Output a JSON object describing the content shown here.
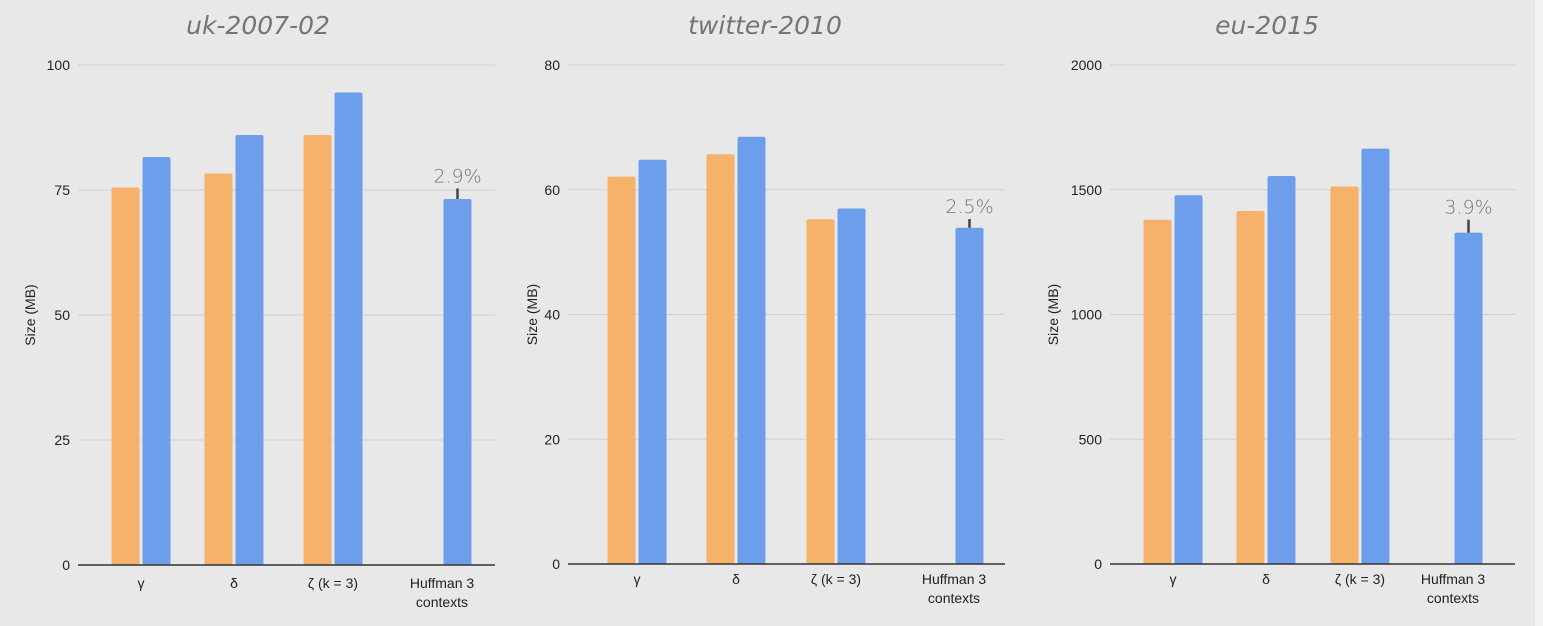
{
  "colors": {
    "background": "#e8e8e8",
    "gridline": "#cfcfcf",
    "axis": "#333333",
    "series_a": "#f6b26b",
    "series_b": "#6d9eeb",
    "title_text": "#757575",
    "annotation_text": "#757575",
    "error_bar": "#444444"
  },
  "chart_data": [
    {
      "type": "bar",
      "title": "uk-2007-02",
      "ylabel": "Size (MB)",
      "ylim": [
        0,
        100
      ],
      "yticks": [
        0,
        25,
        50,
        75,
        100
      ],
      "grid": true,
      "categories": [
        [
          "γ"
        ],
        [
          "δ"
        ],
        [
          "ζ (k = 3)"
        ],
        [
          "Huffman 3",
          "contexts"
        ]
      ],
      "series": [
        {
          "values": [
            75.5,
            78.3,
            86.0,
            null
          ]
        },
        {
          "values": [
            81.6,
            86.0,
            94.5,
            73.2
          ]
        }
      ],
      "annotation": {
        "category_index": 3,
        "text": "2.9%",
        "error_bar_to": 75.3
      }
    },
    {
      "type": "bar",
      "title": "twitter-2010",
      "ylabel": "Size (MB)",
      "ylim": [
        0,
        80
      ],
      "yticks": [
        0,
        20,
        40,
        60,
        80
      ],
      "grid": true,
      "categories": [
        [
          "γ"
        ],
        [
          "δ"
        ],
        [
          "ζ (k = 3)"
        ],
        [
          "Huffman 3",
          "contexts"
        ]
      ],
      "series": [
        {
          "values": [
            62.1,
            65.7,
            55.3,
            null
          ]
        },
        {
          "values": [
            64.8,
            68.5,
            57.0,
            53.9
          ]
        }
      ],
      "annotation": {
        "category_index": 3,
        "text": "2.5%",
        "error_bar_to": 55.3
      }
    },
    {
      "type": "bar",
      "title": "eu-2015",
      "ylabel": "Size (MB)",
      "ylim": [
        0,
        2000
      ],
      "yticks": [
        0,
        500,
        1000,
        1500,
        2000
      ],
      "grid": true,
      "categories": [
        [
          "γ"
        ],
        [
          "δ"
        ],
        [
          "ζ (k = 3)"
        ],
        [
          "Huffman 3",
          "contexts"
        ]
      ],
      "series": [
        {
          "values": [
            1380,
            1415,
            1513,
            null
          ]
        },
        {
          "values": [
            1478,
            1555,
            1665,
            1328
          ]
        }
      ],
      "annotation": {
        "category_index": 3,
        "text": "3.9%",
        "error_bar_to": 1380
      }
    }
  ]
}
